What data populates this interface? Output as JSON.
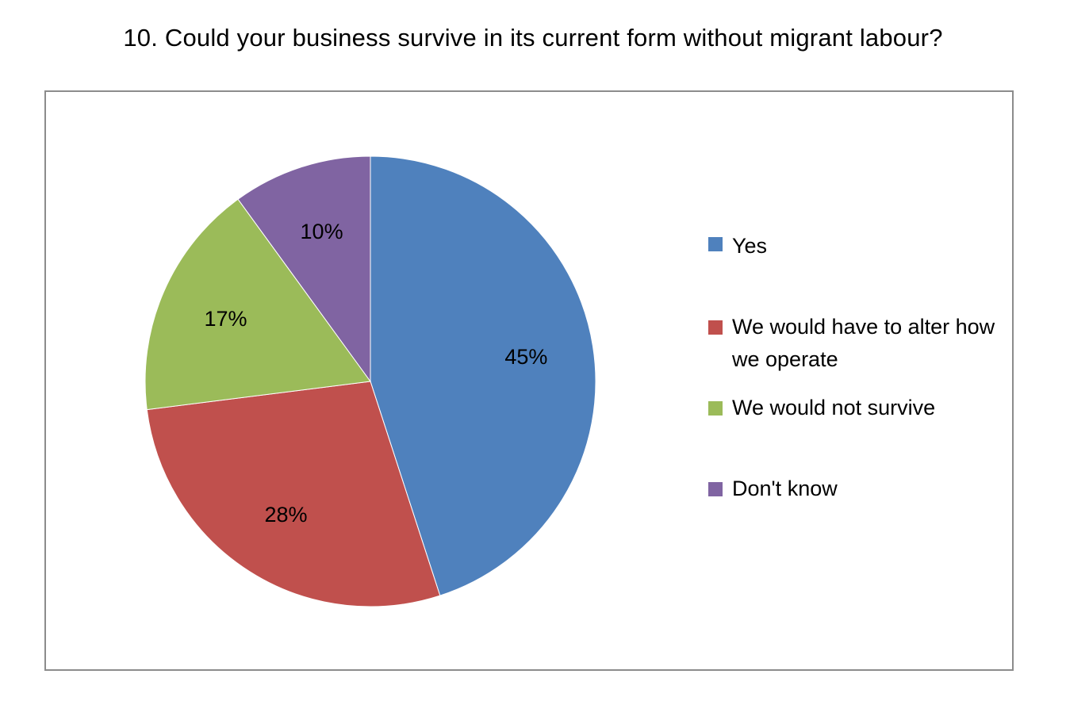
{
  "chart_data": {
    "type": "pie",
    "title": "10. Could your business survive in its current form without migrant labour?",
    "categories": [
      "Yes",
      "We would have to alter how we operate",
      "We would not survive",
      "Don't know"
    ],
    "values": [
      45,
      28,
      17,
      10
    ],
    "labels": [
      "45%",
      "28%",
      "17%",
      "10%"
    ],
    "colors": [
      "#4f81bd",
      "#c0504d",
      "#9bbb59",
      "#8064a2"
    ],
    "start_angle": "12 o'clock",
    "direction": "clockwise",
    "legend_position": "right"
  },
  "legend": {
    "items": [
      {
        "label": "Yes",
        "color": "#4f81bd"
      },
      {
        "label": "We would have to alter how we operate",
        "color": "#c0504d"
      },
      {
        "label": "We would not survive",
        "color": "#9bbb59"
      },
      {
        "label": "Don't know",
        "color": "#8064a2"
      }
    ]
  }
}
